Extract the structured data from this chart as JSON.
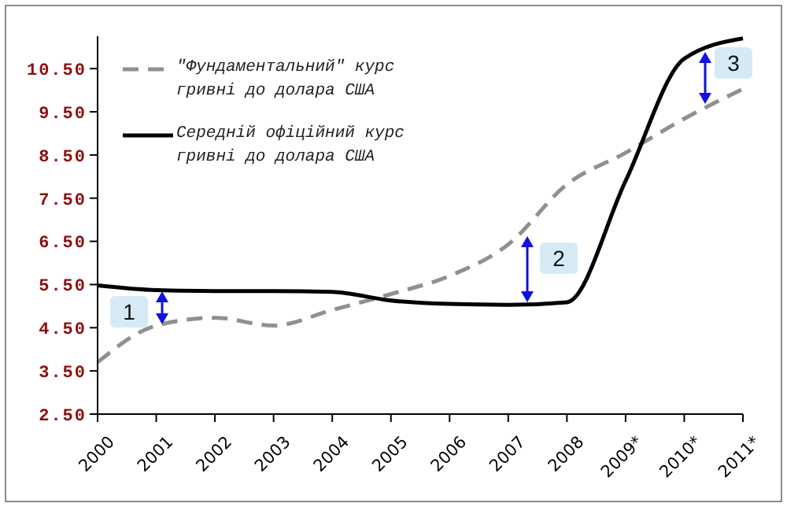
{
  "chart_data": {
    "type": "line",
    "categories": [
      "2000",
      "2001",
      "2002",
      "2003",
      "2004",
      "2005",
      "2006",
      "2007",
      "2008",
      "2009*",
      "2010*",
      "2011*"
    ],
    "series": [
      {
        "name": "\"Фундаментальний\" курс гривні до долара США",
        "color": "#909090",
        "line_style": "dashed",
        "values": [
          3.7,
          4.55,
          4.73,
          4.55,
          4.91,
          5.28,
          5.7,
          6.43,
          7.82,
          8.55,
          9.34,
          10.03
        ]
      },
      {
        "name": "Середній офіційний курс гривні до долара США",
        "color": "#000000",
        "line_style": "solid",
        "values": [
          5.48,
          5.37,
          5.35,
          5.35,
          5.33,
          5.13,
          5.05,
          5.03,
          5.09,
          7.9,
          10.73,
          11.2
        ]
      }
    ],
    "ylim": [
      2.5,
      11.25
    ],
    "yticks": [
      {
        "value": 2.5,
        "label": "2.50"
      },
      {
        "value": 3.5,
        "label": "3.50"
      },
      {
        "value": 4.5,
        "label": "4.50"
      },
      {
        "value": 5.5,
        "label": "5.50"
      },
      {
        "value": 6.5,
        "label": "6.50"
      },
      {
        "value": 7.5,
        "label": "7.50"
      },
      {
        "value": 8.5,
        "label": "8.50"
      },
      {
        "value": 9.5,
        "label": "9.50"
      },
      {
        "value": 10.5,
        "label": "10.50"
      }
    ],
    "annotations": [
      "1",
      "2",
      "3"
    ],
    "legend": "top left",
    "marker": "none",
    "grid": false
  }
}
